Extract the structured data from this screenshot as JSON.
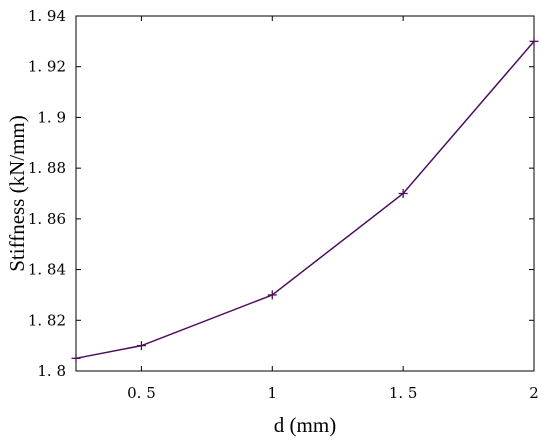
{
  "chart_data": {
    "type": "line",
    "title": "",
    "xlabel": "d (mm)",
    "ylabel": "Stiffness (kN/mm)",
    "xlim": [
      0.25,
      2
    ],
    "ylim": [
      1.8,
      1.94
    ],
    "x_ticks": [
      0.5,
      1,
      1.5,
      2
    ],
    "x_tick_labels": [
      "0. 5",
      "1",
      "1. 5",
      "2"
    ],
    "y_ticks": [
      1.8,
      1.82,
      1.84,
      1.86,
      1.88,
      1.9,
      1.92,
      1.94
    ],
    "y_tick_labels": [
      "1. 8",
      "1. 82",
      "1. 84",
      "1. 86",
      "1. 88",
      "1. 9",
      "1. 92",
      "1. 94"
    ],
    "grid": false,
    "legend": "none",
    "series": [
      {
        "x": [
          0.25,
          0.5,
          1,
          1.5,
          2
        ],
        "y": [
          1.805,
          1.81,
          1.83,
          1.87,
          1.93
        ],
        "marker": "plus",
        "color": "#4b0f5e"
      }
    ]
  }
}
